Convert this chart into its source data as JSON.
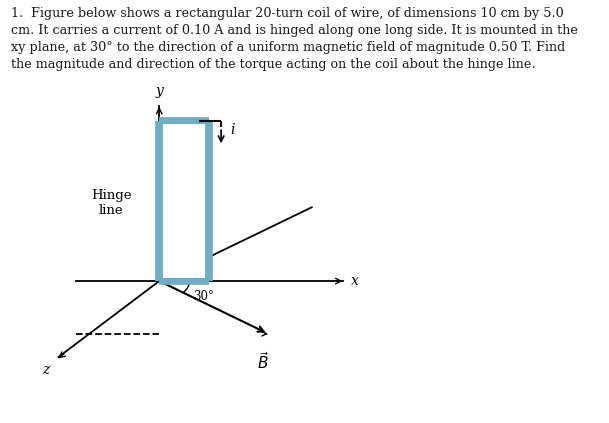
{
  "title_text": "1.  Figure below shows a rectangular 20-turn coil of wire, of dimensions 10 cm by 5.0\ncm. It carries a current of 0.10 A and is hinged along one long side. It is mounted in the\nxy plane, at 30° to the direction of a uniform magnetic field of magnitude 0.50 T. Find\nthe magnitude and direction of the torque acting on the coil about the hinge line.",
  "background_color": "#ffffff",
  "coil_fill": "#b8d8e0",
  "coil_edge": "#6aaec8",
  "coil_inner": "#ffffff",
  "text_color": "#1a1a1a",
  "fig_width": 6.09,
  "fig_height": 4.23,
  "dpi": 100,
  "y_axis_label": "y",
  "x_axis_label": "x",
  "z_axis_label": "z",
  "B_label": "$\\vec{B}$",
  "i_label": "i",
  "hinge_label": "Hinge\nline",
  "angle_label": "30°"
}
